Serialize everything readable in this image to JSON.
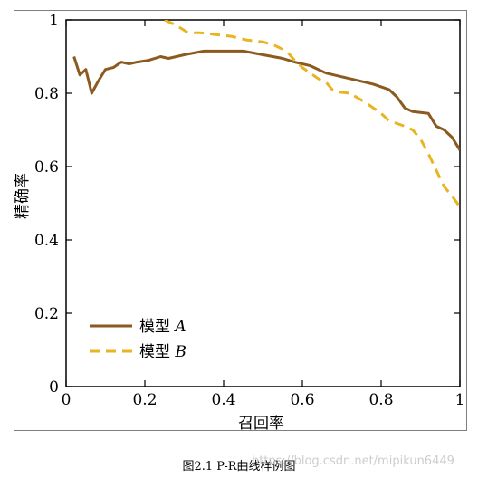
{
  "colors": {
    "model_a": "#8B5A1F",
    "model_b": "#E8B520",
    "axis": "#000000"
  },
  "chart_data": {
    "type": "line",
    "xlabel": "召回率",
    "ylabel": "精确率",
    "xlim": [
      0,
      1
    ],
    "ylim": [
      0,
      1
    ],
    "x_ticks": [
      0,
      0.2,
      0.4,
      0.6,
      0.8,
      1
    ],
    "x_tick_labels": [
      "0",
      "0.2",
      "0.4",
      "0.6",
      "0.8",
      "1"
    ],
    "y_ticks": [
      0,
      0.2,
      0.4,
      0.6,
      0.8,
      1
    ],
    "y_tick_labels": [
      "0",
      "0.2",
      "0.4",
      "0.6",
      "0.8",
      "1"
    ],
    "grid": false,
    "legend_position": "bottom-left",
    "series": [
      {
        "name": "模型 A",
        "name_prefix": "模型",
        "name_letter": "A",
        "style": "solid",
        "points": [
          [
            0.02,
            0.9
          ],
          [
            0.035,
            0.85
          ],
          [
            0.05,
            0.865
          ],
          [
            0.065,
            0.8
          ],
          [
            0.08,
            0.83
          ],
          [
            0.1,
            0.865
          ],
          [
            0.12,
            0.87
          ],
          [
            0.14,
            0.885
          ],
          [
            0.16,
            0.88
          ],
          [
            0.18,
            0.885
          ],
          [
            0.21,
            0.89
          ],
          [
            0.24,
            0.9
          ],
          [
            0.26,
            0.895
          ],
          [
            0.3,
            0.905
          ],
          [
            0.35,
            0.915
          ],
          [
            0.4,
            0.915
          ],
          [
            0.45,
            0.915
          ],
          [
            0.5,
            0.905
          ],
          [
            0.55,
            0.895
          ],
          [
            0.58,
            0.885
          ],
          [
            0.62,
            0.875
          ],
          [
            0.66,
            0.855
          ],
          [
            0.7,
            0.845
          ],
          [
            0.74,
            0.835
          ],
          [
            0.78,
            0.825
          ],
          [
            0.82,
            0.81
          ],
          [
            0.84,
            0.79
          ],
          [
            0.86,
            0.76
          ],
          [
            0.88,
            0.75
          ],
          [
            0.92,
            0.745
          ],
          [
            0.94,
            0.71
          ],
          [
            0.96,
            0.7
          ],
          [
            0.98,
            0.68
          ],
          [
            1.0,
            0.645
          ]
        ]
      },
      {
        "name": "模型 B",
        "name_prefix": "模型",
        "name_letter": "B",
        "style": "dashed",
        "points": [
          [
            0.25,
            1.0
          ],
          [
            0.28,
            0.985
          ],
          [
            0.31,
            0.965
          ],
          [
            0.34,
            0.965
          ],
          [
            0.38,
            0.96
          ],
          [
            0.42,
            0.955
          ],
          [
            0.46,
            0.945
          ],
          [
            0.5,
            0.94
          ],
          [
            0.53,
            0.93
          ],
          [
            0.56,
            0.915
          ],
          [
            0.58,
            0.89
          ],
          [
            0.6,
            0.87
          ],
          [
            0.62,
            0.855
          ],
          [
            0.64,
            0.84
          ],
          [
            0.66,
            0.83
          ],
          [
            0.68,
            0.805
          ],
          [
            0.72,
            0.8
          ],
          [
            0.76,
            0.775
          ],
          [
            0.8,
            0.745
          ],
          [
            0.82,
            0.725
          ],
          [
            0.86,
            0.71
          ],
          [
            0.88,
            0.7
          ],
          [
            0.9,
            0.675
          ],
          [
            0.92,
            0.635
          ],
          [
            0.94,
            0.59
          ],
          [
            0.96,
            0.545
          ],
          [
            0.98,
            0.52
          ],
          [
            1.0,
            0.49
          ]
        ]
      }
    ]
  },
  "caption": "图2.1    P-R曲线样例图",
  "watermark": "https://blog.csdn.net/mipikun6449"
}
